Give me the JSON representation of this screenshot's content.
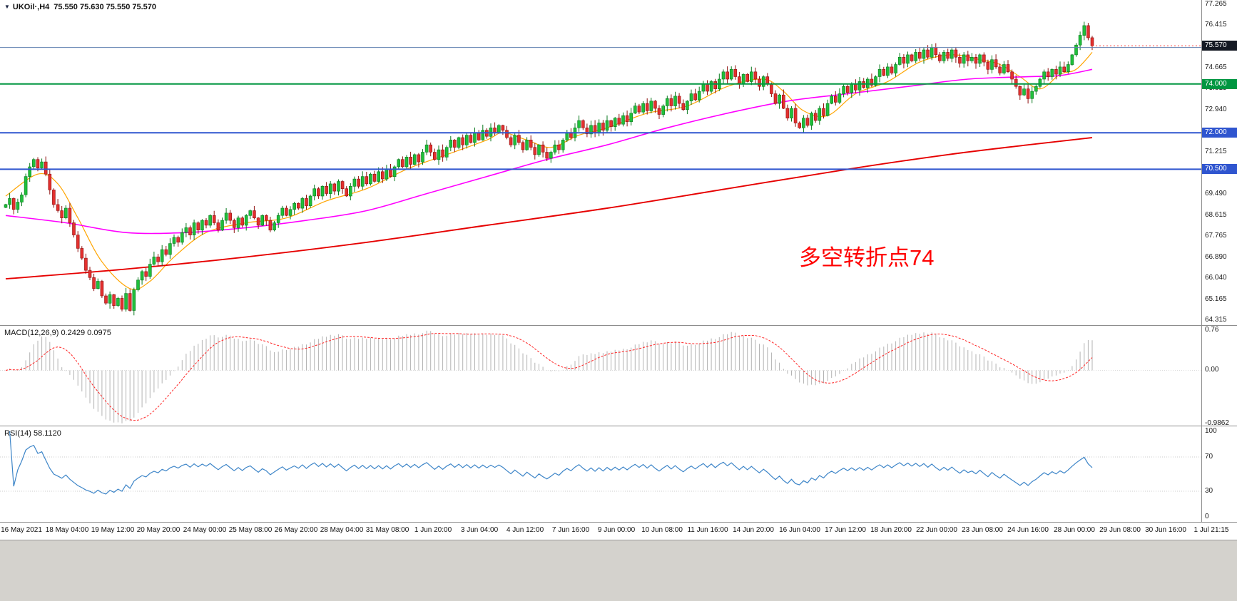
{
  "ui": {
    "symbol_dropdown_icon": "▼"
  },
  "chart_data": [
    {
      "type": "candlestick",
      "title": "UKOil·,H4",
      "timeframe": "H4",
      "ohlc_display": "75.550 75.630 75.550 75.570",
      "current_price": 75.57,
      "ylim": [
        64.1,
        77.45
      ],
      "y_ticks": [
        77.265,
        76.415,
        74.665,
        73.815,
        72.94,
        71.215,
        70.365,
        69.49,
        68.615,
        67.765,
        66.89,
        66.04,
        65.165,
        64.315
      ],
      "price_tags": [
        {
          "label": "75.570",
          "value": 75.57,
          "color": "#141923",
          "name": "current-price-tag"
        },
        {
          "label": "74.000",
          "value": 74.0,
          "color": "#009640",
          "name": "level-74-tag"
        },
        {
          "label": "72.000",
          "value": 72.0,
          "color": "#2f55cf",
          "name": "level-72-tag"
        },
        {
          "label": "70.500",
          "value": 70.5,
          "color": "#2f55cf",
          "name": "level-70-5-tag"
        }
      ],
      "hlines": [
        {
          "value": 75.5,
          "color": "#6080b0",
          "width": 1
        },
        {
          "value": 74.0,
          "color": "#009640",
          "width": 2
        },
        {
          "value": 72.0,
          "color": "#2f55cf",
          "width": 2
        },
        {
          "value": 70.5,
          "color": "#2f55cf",
          "width": 2
        }
      ],
      "bid_line": {
        "value": 75.57,
        "color": "#ff3333"
      },
      "annotation": {
        "text": "多空转折点74",
        "color": "#ff0000"
      },
      "up_color": "#1fbf3a",
      "up_stroke": "#0a7a1f",
      "down_color": "#e3302e",
      "down_stroke": "#8f100f",
      "x_labels": [
        "16 May 2021",
        "18 May 04:00",
        "19 May 12:00",
        "20 May 20:00",
        "24 May 00:00",
        "25 May 08:00",
        "26 May 20:00",
        "28 May 04:00",
        "31 May 08:00",
        "1 Jun 20:00",
        "3 Jun 04:00",
        "4 Jun 12:00",
        "7 Jun 16:00",
        "9 Jun 00:00",
        "10 Jun 08:00",
        "11 Jun 16:00",
        "14 Jun 20:00",
        "16 Jun 04:00",
        "17 Jun 12:00",
        "18 Jun 20:00",
        "22 Jun 00:00",
        "23 Jun 08:00",
        "24 Jun 16:00",
        "28 Jun 00:00",
        "29 Jun 08:00",
        "30 Jun 16:00",
        "1 Jul 21:15"
      ],
      "closes": [
        69.05,
        69.3,
        68.85,
        69.15,
        69.45,
        70.2,
        70.6,
        70.9,
        70.55,
        70.8,
        70.3,
        69.65,
        69.05,
        68.8,
        68.5,
        68.9,
        68.3,
        67.8,
        67.25,
        66.85,
        66.35,
        66.05,
        65.6,
        65.9,
        65.3,
        65.0,
        65.35,
        64.9,
        65.2,
        64.75,
        65.4,
        64.7,
        65.55,
        65.95,
        66.3,
        66.1,
        66.6,
        66.9,
        66.7,
        67.2,
        67.0,
        67.45,
        67.7,
        67.5,
        67.9,
        68.1,
        67.8,
        68.3,
        68.0,
        68.4,
        68.2,
        68.6,
        68.3,
        68.0,
        68.4,
        68.7,
        68.4,
        68.1,
        68.5,
        68.2,
        68.6,
        68.8,
        68.5,
        68.2,
        68.6,
        68.4,
        68.0,
        68.3,
        68.6,
        68.9,
        68.6,
        68.85,
        69.1,
        68.9,
        69.3,
        69.0,
        69.4,
        69.7,
        69.4,
        69.8,
        69.5,
        69.9,
        69.6,
        70.0,
        69.7,
        69.4,
        69.8,
        70.1,
        69.8,
        70.2,
        69.9,
        70.3,
        70.0,
        70.4,
        70.1,
        70.5,
        70.2,
        70.6,
        70.9,
        70.6,
        71.0,
        70.7,
        71.1,
        70.8,
        71.2,
        71.5,
        71.2,
        70.9,
        71.3,
        71.0,
        71.4,
        71.7,
        71.4,
        71.8,
        71.5,
        71.9,
        71.6,
        72.0,
        71.7,
        72.1,
        71.85,
        72.2,
        72.0,
        72.3,
        72.1,
        71.8,
        71.5,
        71.9,
        71.6,
        71.3,
        71.7,
        71.4,
        71.1,
        71.5,
        71.2,
        70.95,
        71.2,
        71.5,
        71.3,
        71.7,
        72.0,
        71.8,
        72.2,
        72.5,
        72.2,
        71.95,
        72.3,
        72.0,
        72.4,
        72.1,
        72.5,
        72.25,
        72.6,
        72.35,
        72.7,
        72.45,
        72.8,
        73.1,
        72.85,
        73.2,
        72.9,
        73.3,
        73.0,
        72.75,
        73.1,
        73.4,
        73.1,
        73.5,
        73.2,
        72.95,
        73.3,
        73.6,
        73.35,
        73.7,
        74.0,
        73.7,
        74.1,
        73.8,
        74.2,
        74.5,
        74.2,
        74.6,
        74.3,
        74.0,
        74.4,
        74.1,
        74.5,
        74.2,
        73.9,
        74.3,
        74.0,
        73.6,
        73.2,
        73.55,
        73.0,
        72.6,
        73.0,
        72.4,
        72.2,
        72.6,
        72.3,
        72.8,
        72.5,
        73.0,
        72.7,
        73.2,
        73.5,
        73.25,
        73.6,
        73.9,
        73.65,
        74.0,
        73.75,
        74.1,
        73.85,
        74.2,
        73.95,
        74.3,
        74.6,
        74.35,
        74.7,
        74.45,
        74.8,
        75.1,
        74.85,
        75.2,
        74.95,
        75.3,
        75.05,
        75.4,
        75.1,
        75.5,
        75.2,
        74.95,
        75.3,
        75.05,
        75.4,
        75.1,
        74.85,
        75.2,
        74.95,
        75.1,
        74.85,
        75.2,
        74.9,
        74.6,
        75.0,
        74.7,
        74.45,
        74.8,
        74.5,
        74.2,
        73.9,
        73.55,
        73.8,
        73.4,
        73.7,
        73.9,
        74.2,
        74.5,
        74.3,
        74.6,
        74.4,
        74.7,
        74.5,
        74.8,
        75.2,
        75.6,
        76.0,
        76.4,
        75.9,
        75.57
      ],
      "ma_lines": [
        {
          "name": "fast",
          "color": "#ffa500",
          "width": 1.2,
          "anchors": [
            [
              0,
              69.4
            ],
            [
              8,
              70.3
            ],
            [
              13,
              69.9
            ],
            [
              18,
              68.5
            ],
            [
              24,
              66.7
            ],
            [
              31,
              65.6
            ],
            [
              36,
              65.9
            ],
            [
              42,
              66.9
            ],
            [
              50,
              67.9
            ],
            [
              60,
              68.3
            ],
            [
              70,
              68.5
            ],
            [
              80,
              69.2
            ],
            [
              90,
              69.7
            ],
            [
              100,
              70.5
            ],
            [
              110,
              71.1
            ],
            [
              120,
              71.7
            ],
            [
              124,
              72.0
            ],
            [
              130,
              71.7
            ],
            [
              136,
              71.4
            ],
            [
              143,
              71.9
            ],
            [
              150,
              72.2
            ],
            [
              160,
              72.8
            ],
            [
              170,
              73.1
            ],
            [
              180,
              73.9
            ],
            [
              189,
              74.2
            ],
            [
              194,
              73.7
            ],
            [
              199,
              72.9
            ],
            [
              205,
              72.7
            ],
            [
              212,
              73.6
            ],
            [
              220,
              74.1
            ],
            [
              228,
              74.9
            ],
            [
              236,
              75.2
            ],
            [
              243,
              75.0
            ],
            [
              248,
              74.8
            ],
            [
              253,
              74.3
            ],
            [
              258,
              73.8
            ],
            [
              263,
              74.4
            ],
            [
              267,
              74.6
            ],
            [
              271,
              75.3
            ]
          ]
        },
        {
          "name": "mid",
          "color": "#ff00ff",
          "width": 1.6,
          "anchors": [
            [
              0,
              68.6
            ],
            [
              15,
              68.3
            ],
            [
              30,
              67.9
            ],
            [
              45,
              67.9
            ],
            [
              60,
              68.1
            ],
            [
              75,
              68.4
            ],
            [
              90,
              68.8
            ],
            [
              105,
              69.5
            ],
            [
              120,
              70.2
            ],
            [
              135,
              70.9
            ],
            [
              150,
              71.5
            ],
            [
              165,
              72.2
            ],
            [
              180,
              72.8
            ],
            [
              195,
              73.3
            ],
            [
              210,
              73.6
            ],
            [
              225,
              73.9
            ],
            [
              240,
              74.2
            ],
            [
              255,
              74.3
            ],
            [
              263,
              74.35
            ],
            [
              271,
              74.6
            ]
          ]
        },
        {
          "name": "slow",
          "color": "#e60000",
          "width": 1.9,
          "anchors": [
            [
              0,
              66.0
            ],
            [
              30,
              66.4
            ],
            [
              60,
              66.9
            ],
            [
              90,
              67.5
            ],
            [
              120,
              68.2
            ],
            [
              150,
              68.9
            ],
            [
              180,
              69.7
            ],
            [
              210,
              70.5
            ],
            [
              235,
              71.1
            ],
            [
              255,
              71.5
            ],
            [
              271,
              71.8
            ]
          ]
        }
      ]
    },
    {
      "type": "macd",
      "label": "MACD(12,26,9) 0.2429 0.0975",
      "fast_period": 12,
      "slow_period": 26,
      "signal_period": 9,
      "macd_value": 0.2429,
      "signal_value": 0.0975,
      "ylim": [
        -1.03,
        0.83
      ],
      "y_ticks": [
        {
          "v": 0.76,
          "label": "0.76"
        },
        {
          "v": 0,
          "label": "0.00"
        },
        {
          "v": -0.9862,
          "label": "-0.9862"
        }
      ],
      "histogram_color": "#b3b3b3",
      "signal_color": "#ff2222"
    },
    {
      "type": "rsi",
      "label": "RSI(14) 58.1120",
      "period": 14,
      "value": 58.112,
      "levels": [
        70,
        30
      ],
      "y_ticks": [
        {
          "v": 100,
          "label": "100"
        },
        {
          "v": 70,
          "label": "70"
        },
        {
          "v": 30,
          "label": "30"
        },
        {
          "v": 0,
          "label": "0"
        }
      ],
      "line_color": "#3d85c8"
    }
  ]
}
